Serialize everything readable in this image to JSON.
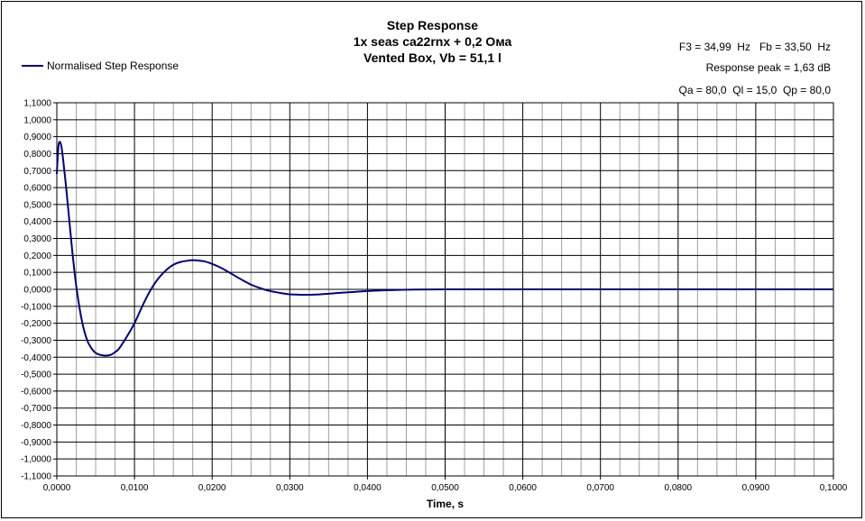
{
  "title_lines": [
    "Step Response",
    "1x seas ca22rnx + 0,2 Ома",
    "Vented Box, Vb = 51,1 l"
  ],
  "info": {
    "line1": "F3 = 34,99  Hz   Fb = 33,50  Hz",
    "line2": "Response peak = 1,63 dB",
    "line3": "Qa = 80,0  Ql = 15,0  Qp = 80,0"
  },
  "legend": {
    "label": "Normalised Step Response"
  },
  "colors": {
    "series": "#000080",
    "major_grid": "#000000",
    "minor_grid": "#a0a0a0"
  },
  "chart_data": {
    "type": "line",
    "xlabel": "Time, s",
    "ylabel": "",
    "xlim": [
      0,
      0.1
    ],
    "ylim": [
      -1.1,
      1.1
    ],
    "x_ticks": [
      "0,0000",
      "0,0100",
      "0,0200",
      "0,0300",
      "0,0400",
      "0,0500",
      "0,0600",
      "0,0700",
      "0,0800",
      "0,0900",
      "0,1000"
    ],
    "y_ticks": [
      "1,1000",
      "1,0000",
      "0,9000",
      "0,8000",
      "0,7000",
      "0,6000",
      "0,5000",
      "0,4000",
      "0,3000",
      "0,2000",
      "0,1000",
      "0,0000",
      "-0,1000",
      "-0,2000",
      "-0,3000",
      "-0,4000",
      "-0,5000",
      "-0,6000",
      "-0,7000",
      "-0,8000",
      "-0,9000",
      "-1,0000",
      "-1,1000"
    ],
    "grid": true,
    "series": [
      {
        "name": "Normalised Step Response",
        "x": [
          0,
          0.0002,
          0.0004,
          0.0006,
          0.0008,
          0.0012,
          0.0016,
          0.002,
          0.0025,
          0.003,
          0.0035,
          0.004,
          0.0045,
          0.005,
          0.0055,
          0.006,
          0.0065,
          0.007,
          0.0075,
          0.008,
          0.009,
          0.01,
          0.011,
          0.012,
          0.013,
          0.014,
          0.015,
          0.016,
          0.017,
          0.0175,
          0.018,
          0.019,
          0.02,
          0.021,
          0.022,
          0.023,
          0.024,
          0.025,
          0.026,
          0.027,
          0.028,
          0.029,
          0.03,
          0.031,
          0.032,
          0.033,
          0.034,
          0.035,
          0.036,
          0.038,
          0.04,
          0.042,
          0.044,
          0.046,
          0.05,
          0.055,
          0.06,
          0.065,
          0.07,
          0.075,
          0.08,
          0.085,
          0.09,
          0.095,
          0.1
        ],
        "y": [
          0.68,
          0.84,
          0.87,
          0.84,
          0.77,
          0.6,
          0.41,
          0.22,
          0.02,
          -0.13,
          -0.24,
          -0.31,
          -0.35,
          -0.375,
          -0.385,
          -0.39,
          -0.39,
          -0.385,
          -0.37,
          -0.35,
          -0.28,
          -0.2,
          -0.1,
          -0.01,
          0.06,
          0.11,
          0.145,
          0.162,
          0.17,
          0.172,
          0.171,
          0.165,
          0.15,
          0.13,
          0.105,
          0.078,
          0.052,
          0.028,
          0.01,
          -0.005,
          -0.015,
          -0.023,
          -0.029,
          -0.031,
          -0.032,
          -0.031,
          -0.029,
          -0.026,
          -0.022,
          -0.016,
          -0.01,
          -0.006,
          -0.003,
          -0.001,
          0.0,
          0.0,
          0.0,
          0.0,
          0.0,
          0.0,
          0.0,
          0.0,
          0.0,
          0.0,
          0.0
        ]
      }
    ]
  }
}
